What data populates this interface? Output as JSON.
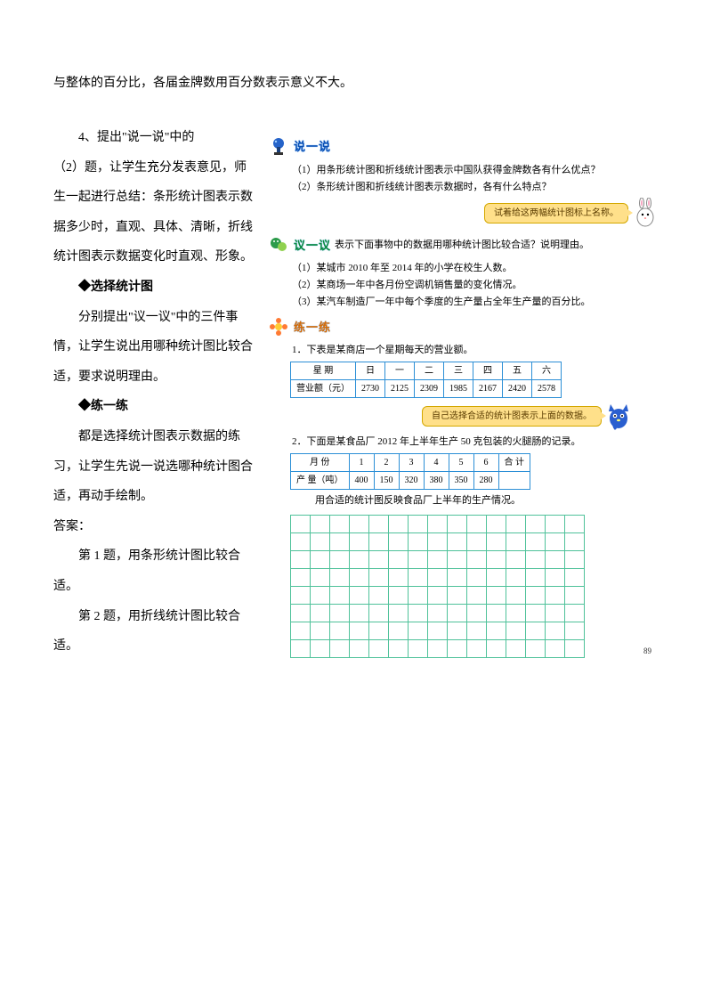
{
  "topLine": "与整体的百分比，各届金牌数用百分数表示意义不大。",
  "left": {
    "p1a": "4、提出\"说一说\"中的",
    "p1b": "（2）题，让学生充分发表意见，师生一起进行总结：条形统计图表示数据多少时，直观、具体、清晰，折线统计图表示数据变化时直观、形象。",
    "h1": "◆选择统计图",
    "p2": "分别提出\"议一议\"中的三件事情，让学生说出用哪种统计图比较合适，要求说明理由。",
    "h2": "◆练一练",
    "p3": "都是选择统计图表示数据的练习，让学生先说一说选哪种统计图合适，再动手绘制。",
    "p4": "答案：",
    "p5": "第 1 题，用条形统计图比较合适。",
    "p6": "第 2 题，用折线统计图比较合适。"
  },
  "right": {
    "say": {
      "title": "说一说",
      "q1": "（1）用条形统计图和折线统计图表示中国队获得金牌数各有什么优点？",
      "q2": "（2）条形统计图和折线统计图表示数据时，各有什么特点？",
      "callout": "试着给这两幅统计图标上名称。"
    },
    "discuss": {
      "title": "议一议",
      "lead": "表示下面事物中的数据用哪种统计图比较合适？说明理由。",
      "q1": "（1）某城市 2010 年至 2014 年的小学在校生人数。",
      "q2": "（2）某商场一年中各月份空调机销售量的变化情况。",
      "q3": "（3）某汽车制造厂一年中每个季度的生产量占全年生产量的百分比。"
    },
    "practice": {
      "title": "练一练",
      "q1_intro": "1．下表是某商店一个星期每天的营业额。",
      "table1": {
        "head": [
          "星  期",
          "日",
          "一",
          "二",
          "三",
          "四",
          "五",
          "六"
        ],
        "row_label": "营业额（元）",
        "row_values": [
          "2730",
          "2125",
          "2309",
          "1985",
          "2167",
          "2420",
          "2578"
        ]
      },
      "callout": "自己选择合适的统计图表示上面的数据。",
      "q2_intro": "2．下面是某食品厂 2012 年上半年生产 50 克包装的火腿肠的记录。",
      "table2": {
        "head": [
          "月  份",
          "1",
          "2",
          "3",
          "4",
          "5",
          "6",
          "合 计"
        ],
        "row_label": "产 量（吨）",
        "row_values": [
          "400",
          "150",
          "320",
          "380",
          "350",
          "280",
          ""
        ]
      },
      "q2_after": "用合适的统计图反映食品厂上半年的生产情况。"
    },
    "pageNum": "89",
    "grid": {
      "rows": 8,
      "cols": 15
    }
  }
}
